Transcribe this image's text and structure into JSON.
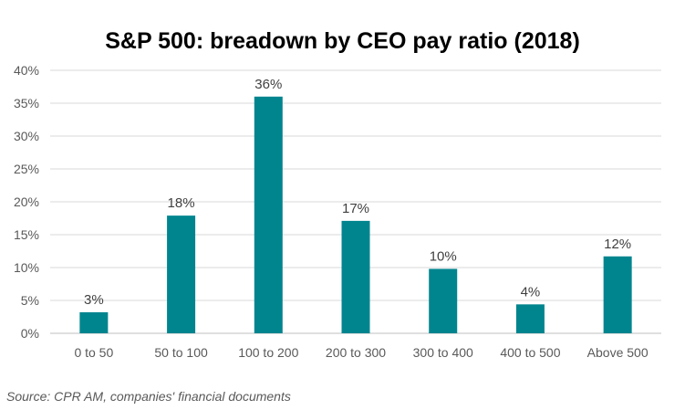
{
  "chart_data": {
    "type": "bar",
    "title": "S&P 500: breadown by CEO pay ratio (2018)",
    "categories": [
      "0 to 50",
      "50 to 100",
      "100 to 200",
      "200 to 300",
      "300 to 400",
      "400 to 500",
      "Above 500"
    ],
    "values": [
      3,
      18,
      36,
      17,
      10,
      4,
      12
    ],
    "value_estimates": [
      3.2,
      17.9,
      36,
      17.1,
      9.8,
      4.4,
      11.7
    ],
    "data_labels": [
      "3%",
      "18%",
      "36%",
      "17%",
      "10%",
      "4%",
      "12%"
    ],
    "y_ticks": [
      "0%",
      "5%",
      "10%",
      "15%",
      "20%",
      "25%",
      "30%",
      "35%",
      "40%"
    ],
    "ylim": [
      0,
      40
    ],
    "xlabel": "",
    "ylabel": "",
    "grid": true,
    "legend": "none",
    "bar_color": "#00858F",
    "source": "Source: CPR AM, companies' financial documents"
  }
}
